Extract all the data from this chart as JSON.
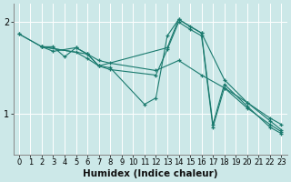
{
  "xlabel": "Humidex (Indice chaleur)",
  "background_color": "#cce8e8",
  "grid_color": "#ffffff",
  "line_color": "#1a7a6e",
  "xlim": [
    -0.5,
    23.5
  ],
  "ylim": [
    0.55,
    2.2
  ],
  "xticks": [
    0,
    1,
    2,
    3,
    4,
    5,
    6,
    7,
    8,
    9,
    10,
    11,
    12,
    13,
    14,
    15,
    16,
    17,
    18,
    19,
    20,
    21,
    22,
    23
  ],
  "yticks": [
    1,
    2
  ],
  "lines": [
    {
      "x": [
        0,
        2,
        3,
        4,
        5,
        6,
        7,
        8,
        11,
        12,
        13,
        14,
        15,
        16,
        17,
        18,
        20,
        22,
        23
      ],
      "y": [
        1.87,
        1.73,
        1.73,
        1.62,
        1.72,
        1.65,
        1.52,
        1.5,
        1.1,
        1.17,
        1.85,
        2.03,
        1.95,
        1.88,
        0.88,
        1.32,
        1.08,
        0.85,
        0.78
      ]
    },
    {
      "x": [
        0,
        2,
        3,
        5,
        6,
        7,
        13,
        14,
        16,
        18,
        20,
        22,
        23
      ],
      "y": [
        1.87,
        1.73,
        1.68,
        1.72,
        1.65,
        1.52,
        1.72,
        2.03,
        1.88,
        1.37,
        1.12,
        0.92,
        0.82
      ]
    },
    {
      "x": [
        2,
        6,
        7,
        8,
        12,
        14,
        16,
        18,
        20,
        22,
        23
      ],
      "y": [
        1.73,
        1.65,
        1.58,
        1.55,
        1.47,
        1.58,
        1.42,
        1.28,
        1.12,
        0.95,
        0.88
      ]
    },
    {
      "x": [
        2,
        5,
        6,
        7,
        8,
        12,
        13,
        14,
        15,
        16,
        17,
        18,
        20,
        22,
        23
      ],
      "y": [
        1.73,
        1.67,
        1.6,
        1.52,
        1.48,
        1.42,
        1.7,
        2.0,
        1.92,
        1.85,
        0.85,
        1.28,
        1.06,
        0.88,
        0.8
      ]
    }
  ]
}
